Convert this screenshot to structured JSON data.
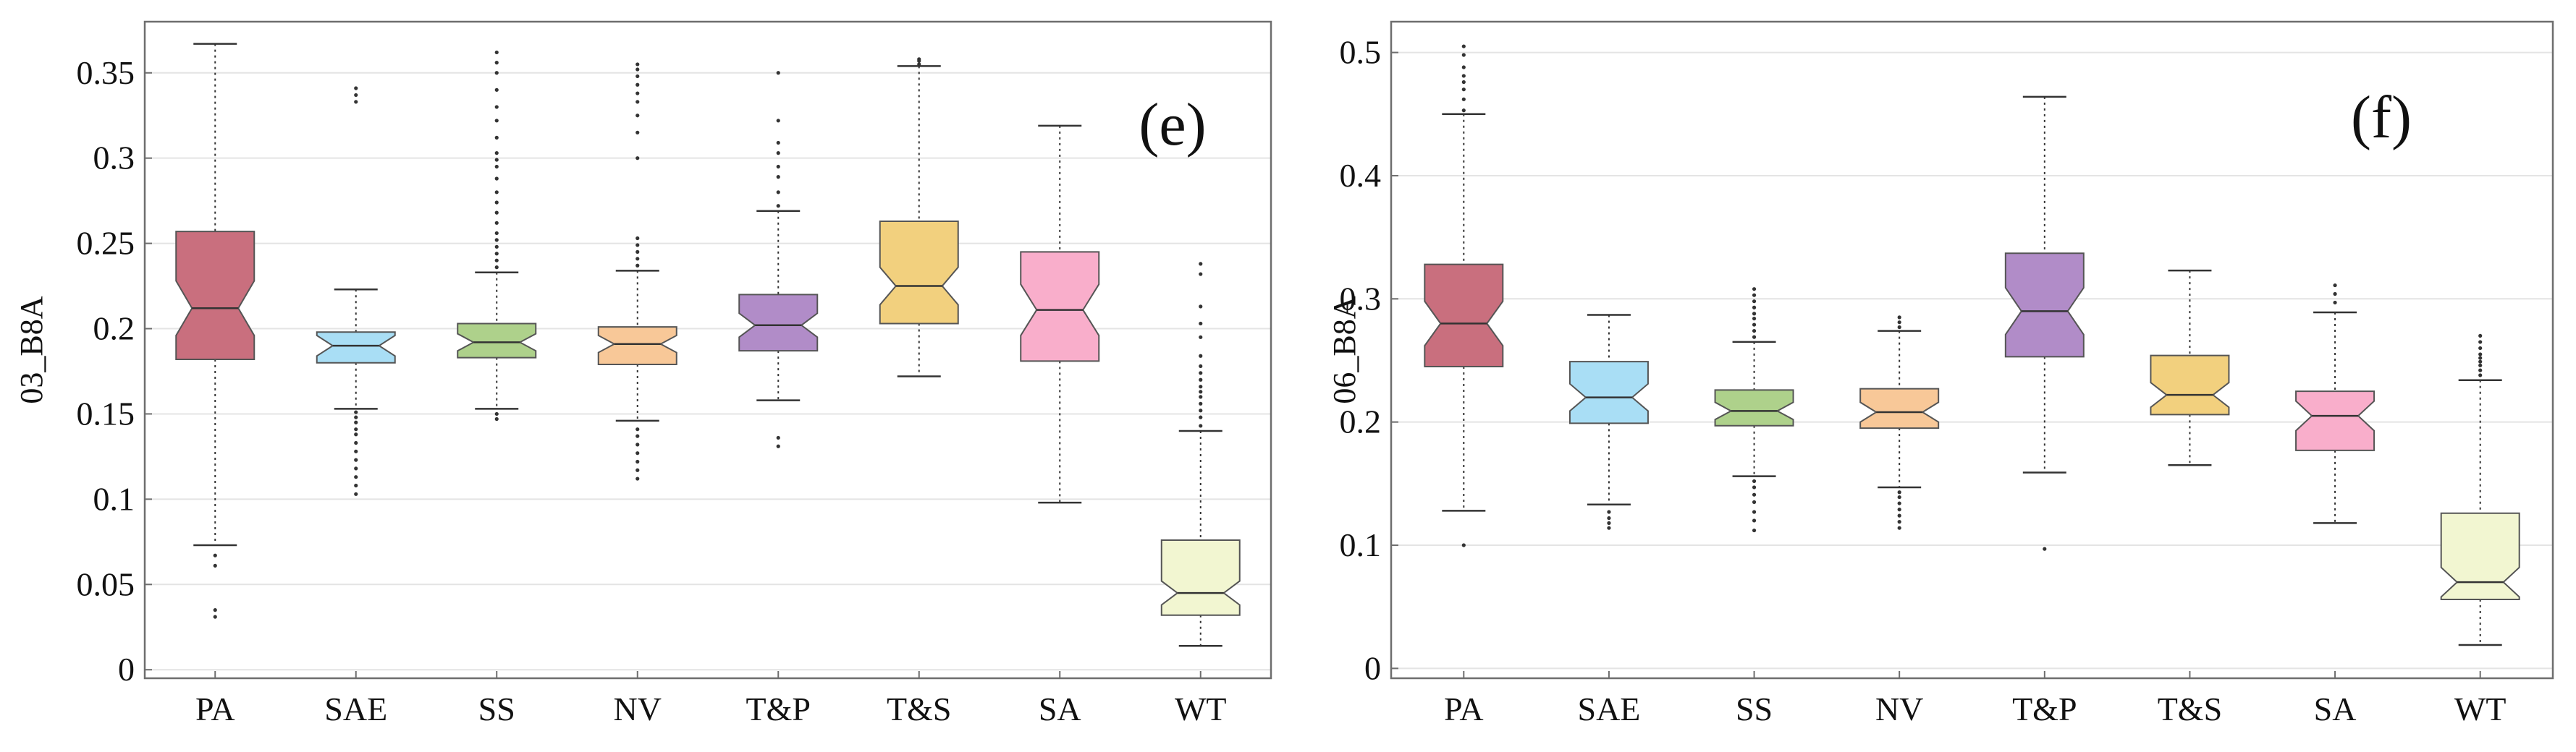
{
  "colors": {
    "PA": "#c96f7e",
    "SAE": "#a9def5",
    "SS": "#aed18b",
    "NV": "#f8c898",
    "T&P": "#b18cc8",
    "T&S": "#f2d07e",
    "SA": "#f9aecb",
    "WT": "#f2f6d1"
  },
  "chart_data": [
    {
      "type": "box",
      "panel_label": "(e)",
      "ylabel": "03_B8A",
      "xlabel": "",
      "ylim": [
        -0.005,
        0.38
      ],
      "yticks": [
        0,
        0.05,
        0.1,
        0.15,
        0.2,
        0.25,
        0.3,
        0.35
      ],
      "ytick_labels": [
        "0",
        "0.05",
        "0.1",
        "0.15",
        "0.2",
        "0.25",
        "0.3",
        "0.35"
      ],
      "grid": true,
      "categories": [
        "PA",
        "SAE",
        "SS",
        "NV",
        "T&P",
        "T&S",
        "SA",
        "WT"
      ],
      "boxes": [
        {
          "name": "PA",
          "min": 0.073,
          "q1": 0.182,
          "median": 0.212,
          "q3": 0.257,
          "max": 0.367,
          "notch_low": 0.196,
          "notch_high": 0.228,
          "outliers": [
            0.031,
            0.035,
            0.061,
            0.067
          ]
        },
        {
          "name": "SAE",
          "min": 0.153,
          "q1": 0.18,
          "median": 0.19,
          "q3": 0.198,
          "max": 0.223,
          "notch_low": 0.184,
          "notch_high": 0.196,
          "outliers": [
            0.103,
            0.108,
            0.113,
            0.118,
            0.123,
            0.128,
            0.133,
            0.138,
            0.141,
            0.145,
            0.148,
            0.151,
            0.333,
            0.337,
            0.341
          ]
        },
        {
          "name": "SS",
          "min": 0.153,
          "q1": 0.183,
          "median": 0.192,
          "q3": 0.203,
          "max": 0.233,
          "notch_low": 0.187,
          "notch_high": 0.197,
          "outliers": [
            0.147,
            0.15,
            0.236,
            0.24,
            0.244,
            0.248,
            0.252,
            0.256,
            0.262,
            0.268,
            0.274,
            0.28,
            0.288,
            0.295,
            0.299,
            0.303,
            0.312,
            0.322,
            0.33,
            0.34,
            0.35,
            0.356,
            0.362
          ]
        },
        {
          "name": "NV",
          "min": 0.146,
          "q1": 0.179,
          "median": 0.191,
          "q3": 0.201,
          "max": 0.234,
          "notch_low": 0.186,
          "notch_high": 0.196,
          "outliers": [
            0.112,
            0.117,
            0.122,
            0.127,
            0.132,
            0.137,
            0.141,
            0.237,
            0.241,
            0.245,
            0.249,
            0.253,
            0.3,
            0.315,
            0.325,
            0.333,
            0.338,
            0.343,
            0.348,
            0.352,
            0.355
          ]
        },
        {
          "name": "T&P",
          "min": 0.158,
          "q1": 0.187,
          "median": 0.202,
          "q3": 0.22,
          "max": 0.269,
          "notch_low": 0.195,
          "notch_high": 0.209,
          "outliers": [
            0.131,
            0.136,
            0.272,
            0.28,
            0.289,
            0.295,
            0.303,
            0.309,
            0.322,
            0.35
          ]
        },
        {
          "name": "T&S",
          "min": 0.172,
          "q1": 0.203,
          "median": 0.225,
          "q3": 0.263,
          "max": 0.354,
          "notch_low": 0.214,
          "notch_high": 0.236,
          "outliers": [
            0.355,
            0.357,
            0.358
          ]
        },
        {
          "name": "SA",
          "min": 0.098,
          "q1": 0.181,
          "median": 0.211,
          "q3": 0.245,
          "max": 0.319,
          "notch_low": 0.196,
          "notch_high": 0.226,
          "outliers": []
        },
        {
          "name": "WT",
          "min": 0.014,
          "q1": 0.032,
          "median": 0.045,
          "q3": 0.076,
          "max": 0.14,
          "notch_low": 0.038,
          "notch_high": 0.052,
          "outliers": [
            0.143,
            0.148,
            0.152,
            0.156,
            0.16,
            0.163,
            0.166,
            0.17,
            0.174,
            0.178,
            0.184,
            0.195,
            0.203,
            0.213,
            0.232,
            0.238
          ]
        }
      ]
    },
    {
      "type": "box",
      "panel_label": "(f)",
      "ylabel": "06_B8A",
      "xlabel": "",
      "ylim": [
        -0.008,
        0.525
      ],
      "yticks": [
        0,
        0.1,
        0.2,
        0.3,
        0.4,
        0.5
      ],
      "ytick_labels": [
        "0",
        "0.1",
        "0.2",
        "0.3",
        "0.4",
        "0.5"
      ],
      "grid": true,
      "categories": [
        "PA",
        "SAE",
        "SS",
        "NV",
        "T&P",
        "T&S",
        "SA",
        "WT"
      ],
      "boxes": [
        {
          "name": "PA",
          "min": 0.128,
          "q1": 0.245,
          "median": 0.28,
          "q3": 0.328,
          "max": 0.45,
          "notch_low": 0.262,
          "notch_high": 0.298,
          "outliers": [
            0.1,
            0.453,
            0.462,
            0.47,
            0.476,
            0.481,
            0.488,
            0.498,
            0.505
          ]
        },
        {
          "name": "SAE",
          "min": 0.133,
          "q1": 0.199,
          "median": 0.22,
          "q3": 0.249,
          "max": 0.287,
          "notch_low": 0.209,
          "notch_high": 0.231,
          "outliers": [
            0.114,
            0.118,
            0.122,
            0.127
          ]
        },
        {
          "name": "SS",
          "min": 0.156,
          "q1": 0.197,
          "median": 0.209,
          "q3": 0.226,
          "max": 0.265,
          "notch_low": 0.202,
          "notch_high": 0.216,
          "outliers": [
            0.112,
            0.12,
            0.127,
            0.135,
            0.141,
            0.147,
            0.152,
            0.269,
            0.274,
            0.279,
            0.284,
            0.288,
            0.293,
            0.298,
            0.303,
            0.308
          ]
        },
        {
          "name": "NV",
          "min": 0.147,
          "q1": 0.195,
          "median": 0.208,
          "q3": 0.227,
          "max": 0.274,
          "notch_low": 0.2,
          "notch_high": 0.216,
          "outliers": [
            0.114,
            0.119,
            0.124,
            0.129,
            0.134,
            0.139,
            0.143,
            0.277,
            0.281,
            0.285
          ]
        },
        {
          "name": "T&P",
          "min": 0.159,
          "q1": 0.253,
          "median": 0.29,
          "q3": 0.337,
          "max": 0.464,
          "notch_low": 0.271,
          "notch_high": 0.309,
          "outliers": [
            0.097
          ]
        },
        {
          "name": "T&S",
          "min": 0.165,
          "q1": 0.206,
          "median": 0.222,
          "q3": 0.254,
          "max": 0.323,
          "notch_low": 0.212,
          "notch_high": 0.232,
          "outliers": []
        },
        {
          "name": "SA",
          "min": 0.118,
          "q1": 0.177,
          "median": 0.205,
          "q3": 0.225,
          "max": 0.289,
          "notch_low": 0.193,
          "notch_high": 0.217,
          "outliers": [
            0.297,
            0.304,
            0.311
          ]
        },
        {
          "name": "WT",
          "min": 0.019,
          "q1": 0.056,
          "median": 0.07,
          "q3": 0.126,
          "max": 0.234,
          "notch_low": 0.058,
          "notch_high": 0.082,
          "outliers": [
            0.238,
            0.242,
            0.246,
            0.249,
            0.252,
            0.255,
            0.26,
            0.265,
            0.27
          ]
        }
      ]
    }
  ]
}
